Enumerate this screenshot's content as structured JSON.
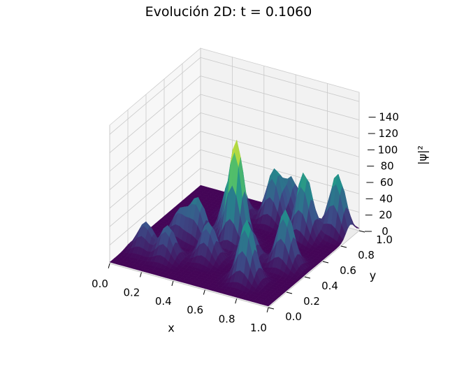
{
  "chart_data": {
    "type": "surface",
    "title": "Evolución 2D: t = 0.1060",
    "xlabel": "x",
    "ylabel": "y",
    "zlabel": "|ψ|²",
    "xlim": [
      0,
      1
    ],
    "ylim": [
      0,
      1
    ],
    "zlim": [
      0,
      150
    ],
    "x_ticks": [
      "0.0",
      "0.2",
      "0.4",
      "0.6",
      "0.8",
      "1.0"
    ],
    "y_ticks": [
      "0.0",
      "0.2",
      "0.4",
      "0.6",
      "0.8",
      "1.0"
    ],
    "z_ticks": [
      "0",
      "20",
      "40",
      "60",
      "80",
      "100",
      "120",
      "140"
    ],
    "colormap": "viridis",
    "grid": true,
    "peaks": [
      {
        "x": 0.1,
        "y": 0.22,
        "z": 30
      },
      {
        "x": 0.2,
        "y": 0.42,
        "z": 30
      },
      {
        "x": 0.3,
        "y": 0.45,
        "z": 45
      },
      {
        "x": 0.42,
        "y": 0.6,
        "z": 60
      },
      {
        "x": 0.45,
        "y": 0.3,
        "z": 40
      },
      {
        "x": 0.5,
        "y": 0.52,
        "z": 110
      },
      {
        "x": 0.55,
        "y": 0.85,
        "z": 55
      },
      {
        "x": 0.65,
        "y": 0.4,
        "z": 35
      },
      {
        "x": 0.75,
        "y": 0.2,
        "z": 65
      },
      {
        "x": 0.78,
        "y": 0.78,
        "z": 70
      },
      {
        "x": 0.85,
        "y": 0.45,
        "z": 60
      },
      {
        "x": 0.92,
        "y": 0.9,
        "z": 65
      },
      {
        "x": 0.35,
        "y": 0.8,
        "z": 40
      },
      {
        "x": 0.25,
        "y": 0.2,
        "z": 35
      },
      {
        "x": 0.6,
        "y": 0.95,
        "z": 40
      }
    ]
  }
}
